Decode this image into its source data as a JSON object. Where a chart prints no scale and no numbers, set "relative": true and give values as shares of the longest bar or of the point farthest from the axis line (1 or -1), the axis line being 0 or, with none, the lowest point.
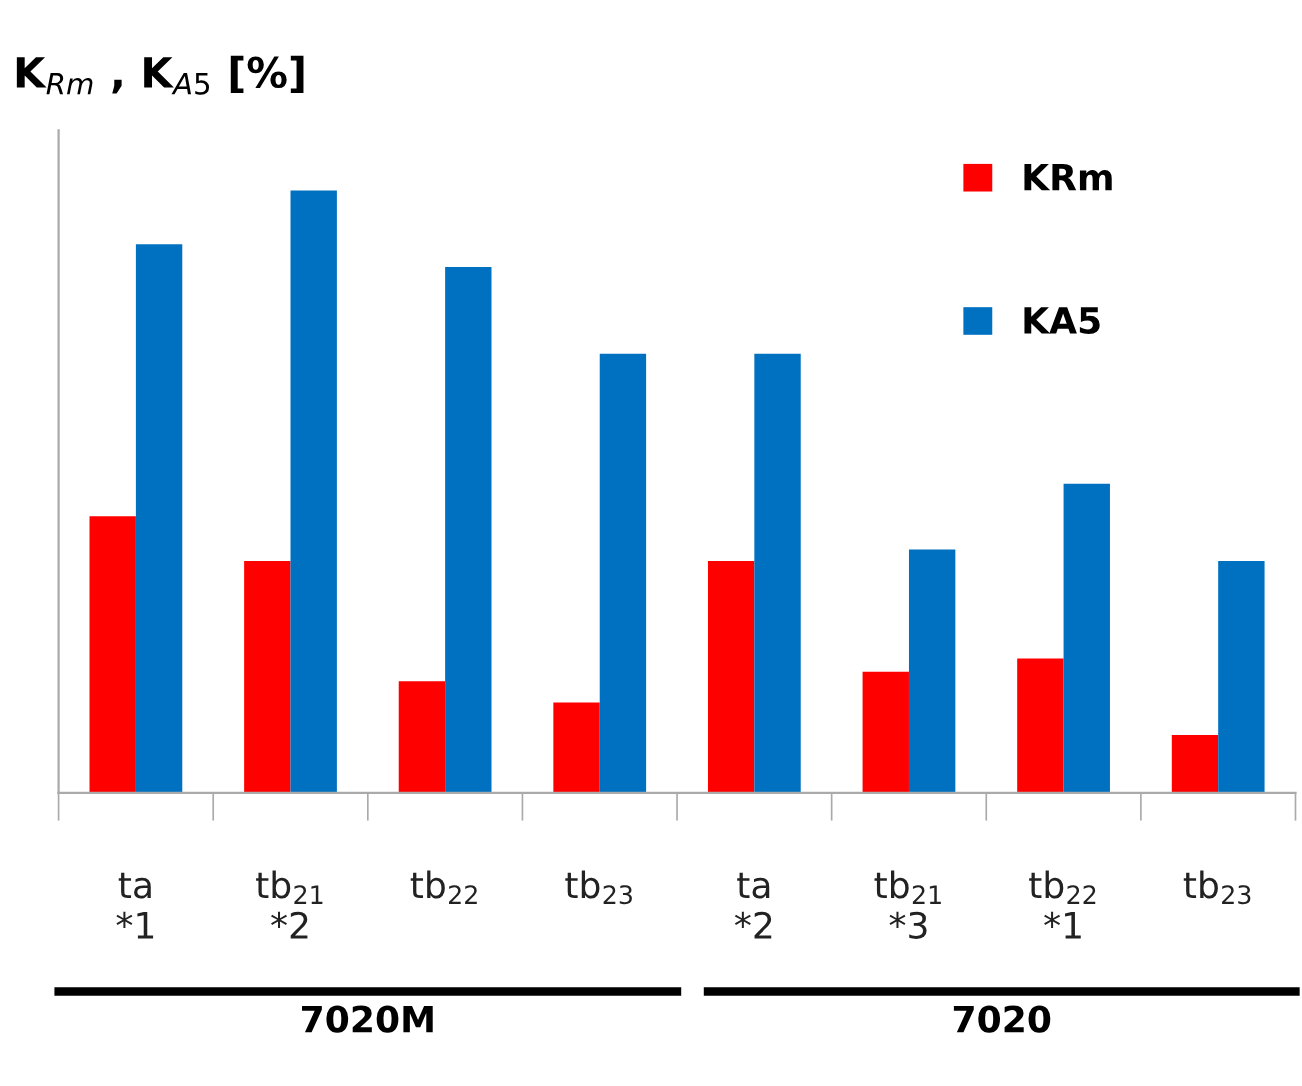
{
  "chart_data": {
    "type": "bar",
    "title": "K$_{Rm}$ , K$_{A5}$ [%]",
    "relative": true,
    "categories": [
      "ta\n*1",
      "tb$_{21}$\n*2",
      "tb$_{22}$",
      "tb$_{23}$",
      "ta\n*2",
      "tb$_{21}$\n*3",
      "tb$_{22}$\n*1",
      "tb$_{23}$"
    ],
    "series": [
      {
        "name": "KRm",
        "color": "#ff0000",
        "values": [
          0.459,
          0.385,
          0.185,
          0.15,
          0.385,
          0.201,
          0.223,
          0.096
        ]
      },
      {
        "name": "KA5",
        "color": "#0070c0",
        "values": [
          0.911,
          1,
          0.873,
          0.729,
          0.729,
          0.404,
          0.513,
          0.385
        ]
      }
    ],
    "legend": "top right",
    "annotations": [
      "7020M",
      "7020"
    ]
  }
}
